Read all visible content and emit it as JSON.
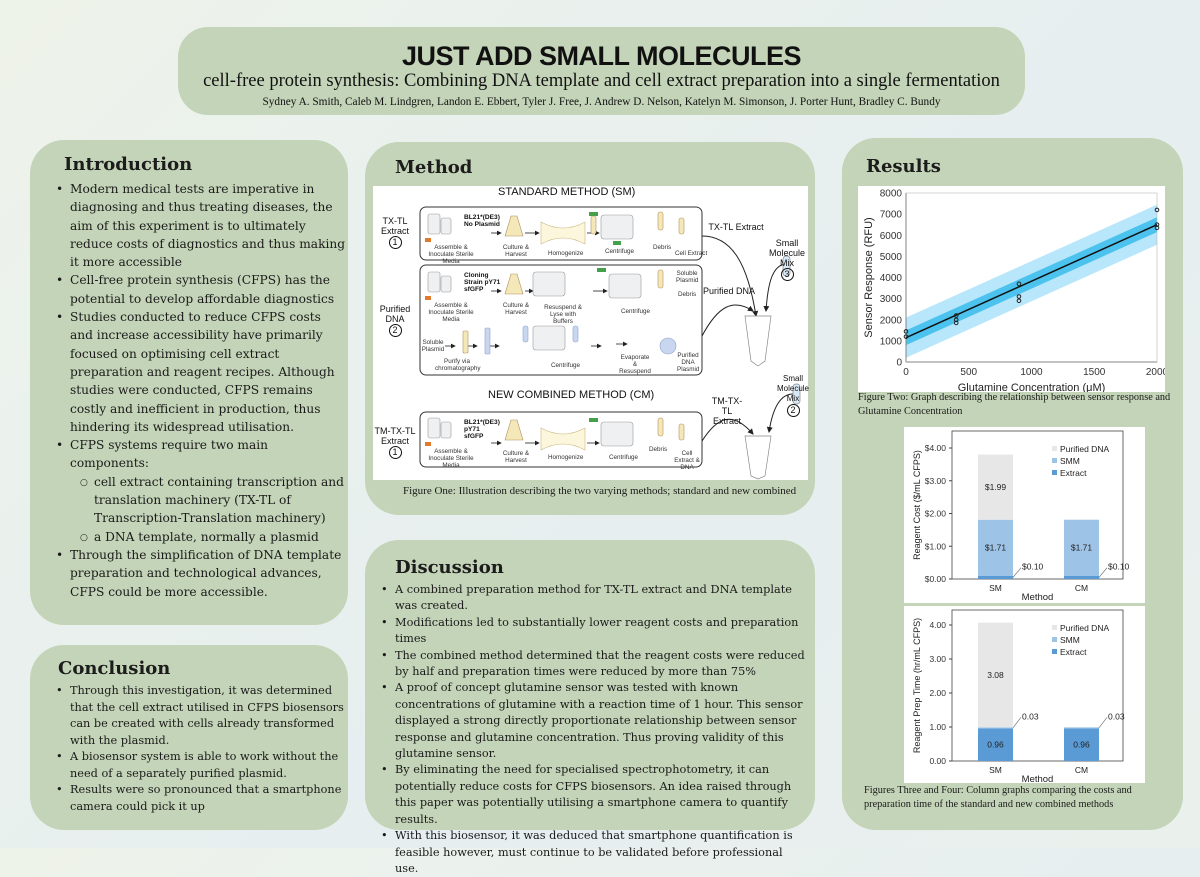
{
  "header": {
    "title": "JUST ADD SMALL MOLECULES",
    "subtitle": "cell-free protein synthesis: Combining DNA template and cell extract preparation into a single fermentation",
    "authors": "Sydney A. Smith, Caleb M. Lindgren, Landon E. Ebbert, Tyler J. Free, J. Andrew D. Nelson, Katelyn M. Simonson, J. Porter Hunt, Bradley C. Bundy"
  },
  "introduction": {
    "heading": "Introduction",
    "bullets": [
      "Modern medical tests are imperative in diagnosing and thus treating diseases, the aim of this experiment is to ultimately reduce costs of diagnostics and thus making it more accessible",
      "Cell-free protein synthesis (CFPS) has the potential to develop affordable diagnostics",
      "Studies conducted to reduce CFPS costs and increase accessibility have primarily focused on optimising cell extract preparation and reagent recipes. Although studies were conducted, CFPS remains costly and inefficient in production, thus hindering its widespread utilisation.",
      "CFPS systems require two main components:",
      "Through the simplification of DNA template preparation and technological advances, CFPS could be more accessible."
    ],
    "sub_bullets": [
      "cell extract containing transcription and translation machinery (TX-TL of Transcription-Translation machinery)",
      "a DNA template, normally a plasmid"
    ]
  },
  "conclusion": {
    "heading": "Conclusion",
    "bullets": [
      "Through this investigation, it was determined that the cell extract utilised in CFPS biosensors can be created with cells already transformed with the plasmid.",
      "A biosensor system is able to work without the need of a separately purified plasmid.",
      "Results were so pronounced that a smartphone camera could pick it up"
    ]
  },
  "method": {
    "heading": "Method",
    "figure": {
      "standard_title": "STANDARD METHOD (SM)",
      "combined_title": "NEW COMBINED METHOD (CM)",
      "sm_row1_label": "TX-TL Extract",
      "sm_row1_num": "1",
      "sm_row2_label": "Purified DNA",
      "sm_row2_num": "2",
      "sm_small_molecule": "Small Molecule Mix",
      "sm_small_num": "3",
      "sm_txtl_out": "TX-TL Extract",
      "sm_dna_out": "Purified DNA",
      "cm_row_label": "TM-TX-TL Extract",
      "cm_row_num": "1",
      "cm_out": "TM-TX-TL Extract",
      "cm_small_molecule": "Small Molecule Mix",
      "cm_small_num": "2",
      "strain1": "BL21*(DE3) No Plasmid",
      "strain2": "Cloning Strain pY71 sfGFP",
      "strain3": "BL21*(DE3) pY71 sfGFP",
      "assemble": "Assemble & Inoculate Sterile Media",
      "culture": "Culture & Harvest",
      "homogenize": "Homogenize",
      "centrifuge": "Centrifuge",
      "debris": "Debris",
      "cell_extract": "Cell Extract",
      "resuspend_lyse": "Resuspend & Lyse with Buffers",
      "soluble_plasmid": "Soluble Plasmid",
      "purify": "Purify via chromatography",
      "evaporate": "Evaporate & Resuspend",
      "purified_plasmid": "Purified DNA Plasmid",
      "cell_extract_dna": "Cell Extract & DNA"
    },
    "caption": "Figure One: Illustration describing the two varying methods; standard and new combined"
  },
  "discussion": {
    "heading": "Discussion",
    "bullets": [
      "A combined preparation method for TX-TL extract and DNA template was created.",
      "Modifications led to substantially lower reagent costs and preparation times",
      "The combined method determined that the reagent costs were reduced by half and preparation times were reduced by more than 75%",
      "A proof of concept glutamine sensor was tested with known concentrations of glutamine with a reaction time of 1 hour. This sensor displayed a strong directly proportionate relationship between sensor response and glutamine concentration. Thus proving validity of this glutamine sensor.",
      "By eliminating the need for specialised spectrophotometry, it can potentially reduce costs for CFPS biosensors. An idea raised through this paper was potentially utilising a smartphone camera to quantify results.",
      "With this biosensor, it was deduced that smartphone quantification is feasible however, must continue to be validated before professional use."
    ]
  },
  "results": {
    "heading": "Results",
    "caption_fig2": "Figure Two: Graph describing the relationship between sensor response and Glutamine Concentration",
    "caption_fig34": "Figures Three and Four: Column graphs comparing the costs and preparation time of the standard and new combined methods"
  },
  "chart_data": [
    {
      "type": "scatter",
      "xlabel": "Glutamine Concentration (μM)",
      "ylabel": "Sensor Response (RFU)",
      "xlim": [
        0,
        2000
      ],
      "ylim": [
        0,
        8000
      ],
      "xticks": [
        0,
        500,
        1000,
        1500,
        2000
      ],
      "yticks": [
        0,
        1000,
        2000,
        3000,
        4000,
        5000,
        6000,
        7000,
        8000
      ],
      "points": [
        [
          0,
          1450
        ],
        [
          0,
          1200
        ],
        [
          400,
          2200
        ],
        [
          400,
          2000
        ],
        [
          400,
          1850
        ],
        [
          900,
          3700
        ],
        [
          900,
          3100
        ],
        [
          900,
          2900
        ],
        [
          2000,
          7200
        ],
        [
          2000,
          6500
        ],
        [
          2000,
          6350
        ]
      ],
      "fit_line": [
        [
          0,
          1150
        ],
        [
          2000,
          6500
        ]
      ],
      "confidence_band": 350,
      "prediction_band": 950,
      "colors": {
        "fit": "#111111",
        "confidence": "#4cc3ef",
        "prediction": "#b8e6fa"
      }
    },
    {
      "type": "bar",
      "stacked": true,
      "xlabel": "Method",
      "ylabel": "Reagent Cost ($/mL CFPS)",
      "categories": [
        "SM",
        "CM"
      ],
      "ylim": [
        0,
        4
      ],
      "yticks": [
        "$0.00",
        "$1.00",
        "$2.00",
        "$3.00",
        "$4.00"
      ],
      "legend_position": "top-right",
      "series": [
        {
          "name": "Extract",
          "values": [
            0.1,
            0.1
          ],
          "color": "#5b9bd5",
          "labels": [
            "$0.10",
            "$0.10"
          ]
        },
        {
          "name": "SMM",
          "values": [
            1.71,
            1.71
          ],
          "color": "#9dc3e6",
          "labels": [
            "$1.71",
            "$1.71"
          ]
        },
        {
          "name": "Purified DNA",
          "values": [
            1.99,
            0
          ],
          "color": "#e7e7e7",
          "labels": [
            "$1.99",
            ""
          ]
        }
      ]
    },
    {
      "type": "bar",
      "stacked": true,
      "xlabel": "Method",
      "ylabel": "Reagent Prep Time (hr/mL CFPS)",
      "categories": [
        "SM",
        "CM"
      ],
      "ylim": [
        0,
        4
      ],
      "yticks": [
        "0.00",
        "1.00",
        "2.00",
        "3.00",
        "4.00"
      ],
      "legend_position": "top-right",
      "series": [
        {
          "name": "Extract",
          "values": [
            0.96,
            0.96
          ],
          "color": "#5b9bd5",
          "labels": [
            "0.96",
            "0.96"
          ]
        },
        {
          "name": "SMM",
          "values": [
            0.03,
            0.03
          ],
          "color": "#9dc3e6",
          "labels": [
            "0.03",
            "0.03"
          ]
        },
        {
          "name": "Purified DNA",
          "values": [
            3.08,
            0
          ],
          "color": "#e7e7e7",
          "labels": [
            "3.08",
            ""
          ]
        }
      ]
    }
  ]
}
